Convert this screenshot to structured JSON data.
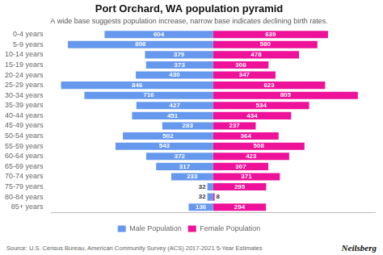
{
  "chart_data": {
    "type": "bar",
    "orientation": "horizontal",
    "title": "Port Orchard, WA population pyramid",
    "subtitle": "A wide base suggests population increase, narrow base indicates declining birth rates.",
    "source": "Source: U.S. Census Bureau, American Community Survey (ACS) 2017-2021 5-Year Estimates",
    "annotations": [
      "Neilsberg"
    ],
    "categories": [
      "85+ years",
      "80-84 years",
      "75-79 years",
      "70-74 years",
      "65-69 years",
      "60-64 years",
      "55-59 years",
      "50-54 years",
      "45-49 years",
      "40-44 years",
      "35-39 years",
      "30-34 years",
      "25-29 years",
      "20-24 years",
      "15-19 years",
      "10-14 years",
      "5-9 years",
      "0-4 years"
    ],
    "series": [
      {
        "name": "Male Population",
        "color": "#6699EE",
        "values": [
          136,
          32,
          32,
          233,
          317,
          372,
          543,
          502,
          283,
          451,
          427,
          716,
          846,
          430,
          373,
          379,
          808,
          604
        ]
      },
      {
        "name": "Female Population",
        "color": "#EE1199",
        "values": [
          294,
          8,
          295,
          371,
          307,
          423,
          508,
          364,
          237,
          434,
          534,
          805,
          623,
          347,
          308,
          478,
          580,
          639
        ]
      }
    ],
    "xlim": [
      0,
      1800
    ],
    "data_labels": true,
    "tick_labels": "y",
    "grid": false,
    "legend": "bottom"
  }
}
